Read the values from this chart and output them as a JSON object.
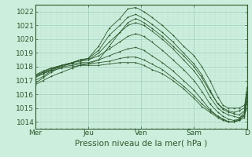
{
  "background_color": "#cceedd",
  "grid_color_major": "#88bbaa",
  "grid_color_minor": "#aaccbb",
  "line_color": "#2d5a2d",
  "marker_color": "#2d5a2d",
  "ylim": [
    1013.5,
    1022.5
  ],
  "yticks": [
    1014,
    1015,
    1016,
    1017,
    1018,
    1019,
    1020,
    1021,
    1022
  ],
  "xlabel": "Pression niveau de la mer( hPa )",
  "xlabel_fontsize": 7.5,
  "tick_fontsize": 6.5,
  "xtick_labels": [
    "Mer",
    "Jeu",
    "Ven",
    "Sam",
    "D"
  ],
  "xtick_positions": [
    0,
    1,
    2,
    3,
    4
  ],
  "xlim": [
    0,
    4
  ],
  "series": [
    [
      0.0,
      1016.8,
      0.15,
      1017.2,
      0.3,
      1017.6,
      0.5,
      1018.0,
      0.7,
      1018.3,
      0.85,
      1018.5,
      1.0,
      1018.6,
      1.2,
      1019.5,
      1.4,
      1020.8,
      1.6,
      1021.5,
      1.75,
      1022.2,
      1.9,
      1022.3,
      2.05,
      1022.0,
      2.2,
      1021.6,
      2.4,
      1021.0,
      2.6,
      1020.3,
      2.8,
      1019.5,
      3.0,
      1018.8,
      3.15,
      1018.0,
      3.3,
      1017.0,
      3.45,
      1015.8,
      3.55,
      1015.2,
      3.65,
      1015.0,
      3.75,
      1015.0,
      3.85,
      1015.0,
      3.95,
      1015.2,
      4.0,
      1015.5
    ],
    [
      0.0,
      1017.0,
      0.15,
      1017.3,
      0.3,
      1017.7,
      0.5,
      1018.1,
      0.7,
      1018.3,
      0.85,
      1018.5,
      1.0,
      1018.6,
      1.2,
      1019.2,
      1.4,
      1020.3,
      1.6,
      1021.0,
      1.75,
      1021.6,
      1.9,
      1021.8,
      2.05,
      1021.5,
      2.2,
      1021.1,
      2.4,
      1020.5,
      2.6,
      1019.8,
      2.8,
      1019.0,
      3.0,
      1018.2,
      3.15,
      1017.4,
      3.3,
      1016.3,
      3.45,
      1015.3,
      3.55,
      1014.9,
      3.65,
      1014.7,
      3.75,
      1014.6,
      3.85,
      1014.5,
      3.95,
      1014.8,
      4.0,
      1015.3
    ],
    [
      0.0,
      1017.2,
      0.15,
      1017.5,
      0.3,
      1017.8,
      0.5,
      1018.1,
      0.7,
      1018.3,
      0.85,
      1018.5,
      1.0,
      1018.5,
      1.2,
      1019.0,
      1.4,
      1019.8,
      1.6,
      1020.5,
      1.75,
      1021.0,
      1.9,
      1021.2,
      2.05,
      1021.0,
      2.2,
      1020.6,
      2.4,
      1020.0,
      2.6,
      1019.3,
      2.8,
      1018.5,
      3.0,
      1017.7,
      3.15,
      1016.9,
      3.3,
      1015.8,
      3.45,
      1015.0,
      3.55,
      1014.7,
      3.65,
      1014.5,
      3.75,
      1014.4,
      3.85,
      1014.3,
      3.95,
      1014.5,
      4.0,
      1015.0
    ],
    [
      0.0,
      1017.3,
      0.15,
      1017.6,
      0.3,
      1017.9,
      0.5,
      1018.1,
      0.7,
      1018.3,
      0.85,
      1018.4,
      1.0,
      1018.5,
      1.2,
      1018.8,
      1.4,
      1019.3,
      1.6,
      1019.8,
      1.75,
      1020.2,
      1.9,
      1020.4,
      2.05,
      1020.2,
      2.2,
      1019.8,
      2.4,
      1019.2,
      2.6,
      1018.5,
      2.8,
      1017.8,
      3.0,
      1017.0,
      3.15,
      1016.2,
      3.3,
      1015.3,
      3.45,
      1014.7,
      3.55,
      1014.4,
      3.65,
      1014.2,
      3.75,
      1014.1,
      3.85,
      1014.2,
      3.95,
      1014.4,
      4.0,
      1015.5
    ],
    [
      0.0,
      1017.4,
      0.15,
      1017.7,
      0.3,
      1017.9,
      0.5,
      1018.1,
      0.7,
      1018.2,
      0.85,
      1018.3,
      1.0,
      1018.3,
      1.2,
      1018.5,
      1.4,
      1018.8,
      1.6,
      1019.1,
      1.75,
      1019.3,
      1.9,
      1019.4,
      2.05,
      1019.2,
      2.2,
      1018.8,
      2.4,
      1018.3,
      2.6,
      1017.7,
      2.8,
      1017.0,
      3.0,
      1016.3,
      3.15,
      1015.6,
      3.3,
      1014.9,
      3.45,
      1014.4,
      3.55,
      1014.2,
      3.65,
      1014.0,
      3.75,
      1014.0,
      3.85,
      1014.1,
      3.95,
      1014.3,
      4.0,
      1015.8
    ],
    [
      0.0,
      1017.4,
      0.15,
      1017.6,
      0.3,
      1017.8,
      0.5,
      1018.0,
      0.7,
      1018.1,
      0.85,
      1018.2,
      1.0,
      1018.2,
      1.2,
      1018.3,
      1.4,
      1018.4,
      1.6,
      1018.6,
      1.75,
      1018.7,
      1.9,
      1018.7,
      2.05,
      1018.5,
      2.2,
      1018.2,
      2.4,
      1017.8,
      2.6,
      1017.2,
      2.8,
      1016.6,
      3.0,
      1015.9,
      3.15,
      1015.3,
      3.3,
      1014.8,
      3.45,
      1014.4,
      3.55,
      1014.2,
      3.65,
      1014.0,
      3.75,
      1014.0,
      3.85,
      1014.1,
      3.95,
      1014.5,
      4.0,
      1016.0
    ],
    [
      0.0,
      1017.3,
      0.15,
      1017.5,
      0.3,
      1017.7,
      0.5,
      1017.9,
      0.7,
      1018.0,
      0.85,
      1018.1,
      1.0,
      1018.1,
      1.2,
      1018.1,
      1.4,
      1018.2,
      1.6,
      1018.3,
      1.75,
      1018.3,
      1.9,
      1018.3,
      2.05,
      1018.1,
      2.2,
      1017.8,
      2.4,
      1017.5,
      2.6,
      1017.0,
      2.8,
      1016.4,
      3.0,
      1015.7,
      3.15,
      1015.1,
      3.3,
      1014.7,
      3.45,
      1014.3,
      3.55,
      1014.1,
      3.65,
      1014.0,
      3.75,
      1014.0,
      3.85,
      1014.2,
      3.95,
      1014.7,
      4.0,
      1016.2
    ],
    [
      0.0,
      1016.7,
      0.15,
      1017.0,
      0.3,
      1017.3,
      0.5,
      1017.6,
      0.7,
      1017.9,
      0.85,
      1018.1,
      1.0,
      1018.2,
      1.2,
      1018.5,
      1.4,
      1019.5,
      1.6,
      1020.5,
      1.75,
      1021.2,
      1.9,
      1021.5,
      2.05,
      1021.2,
      2.2,
      1020.8,
      2.4,
      1020.2,
      2.6,
      1019.5,
      2.8,
      1018.8,
      3.0,
      1018.0,
      3.15,
      1017.2,
      3.3,
      1016.2,
      3.45,
      1015.3,
      3.55,
      1015.0,
      3.65,
      1014.8,
      3.75,
      1014.7,
      3.85,
      1014.8,
      3.95,
      1015.0,
      4.0,
      1016.5
    ]
  ]
}
